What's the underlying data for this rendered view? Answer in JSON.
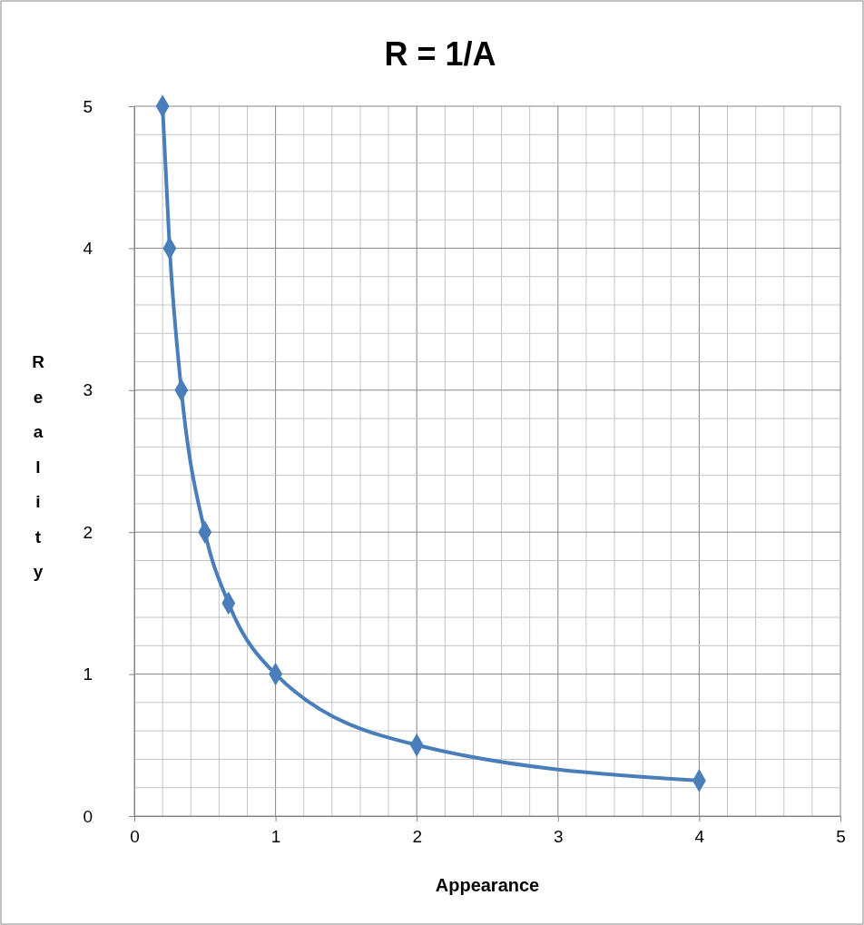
{
  "chart_data": {
    "type": "line",
    "title": "R = 1/A",
    "xlabel": "Appearance",
    "ylabel": "Reality",
    "x": [
      0.2,
      0.25,
      0.333,
      0.5,
      0.667,
      1,
      2,
      4
    ],
    "series": [
      {
        "color": "#4a7ebb",
        "values": [
          5,
          4,
          3,
          2,
          1.5,
          1,
          0.5,
          0.25
        ]
      }
    ],
    "xlim": [
      0,
      5
    ],
    "xticks": [
      0,
      {
        "value": 0.2,
        "label": null
      },
      {
        "value": 0.4,
        "label": null
      },
      {
        "value": 0.6,
        "label": null
      },
      {
        "value": 0.8,
        "label": null
      },
      1,
      {
        "value": 1.2,
        "label": null
      },
      {
        "value": 1.4,
        "label": null
      },
      {
        "value": 1.6,
        "label": null
      },
      {
        "value": 1.8,
        "label": null
      },
      2,
      {
        "value": 2.2,
        "label": null
      },
      {
        "value": 2.4,
        "label": null
      },
      {
        "value": 2.6,
        "label": null
      },
      {
        "value": 2.8,
        "label": null
      },
      3,
      {
        "value": 3.2,
        "label": null
      },
      {
        "value": 3.4,
        "label": null
      },
      {
        "value": 3.6,
        "label": null
      },
      {
        "value": 3.8,
        "label": null
      },
      4,
      {
        "value": 4.2,
        "label": null
      },
      {
        "value": 4.4,
        "label": null
      },
      {
        "value": 4.6,
        "label": null
      },
      {
        "value": 4.8,
        "label": null
      },
      5
    ],
    "ylim": [
      0,
      5
    ],
    "yticks": [
      0,
      {
        "value": 0.2,
        "label": null
      },
      {
        "value": 0.4,
        "label": null
      },
      {
        "value": 0.6,
        "label": null
      },
      {
        "value": 0.8,
        "label": null
      },
      1,
      {
        "value": 1.2,
        "label": null
      },
      {
        "value": 1.4,
        "label": null
      },
      {
        "value": 1.6,
        "label": null
      },
      {
        "value": 1.8,
        "label": null
      },
      2,
      {
        "value": 2.2,
        "label": null
      },
      {
        "value": 2.4,
        "label": null
      },
      {
        "value": 2.6,
        "label": null
      },
      {
        "value": 2.8,
        "label": null
      },
      3,
      {
        "value": 3.2,
        "label": null
      },
      {
        "value": 3.4,
        "label": null
      },
      {
        "value": 3.6,
        "label": null
      },
      {
        "value": 3.8,
        "label": null
      },
      4,
      {
        "value": 4.2,
        "label": null
      },
      {
        "value": 4.4,
        "label": null
      },
      {
        "value": 4.6,
        "label": null
      },
      {
        "value": 4.8,
        "label": null
      },
      5
    ],
    "grid": true,
    "marker": "diamond",
    "line_style": "solid"
  }
}
